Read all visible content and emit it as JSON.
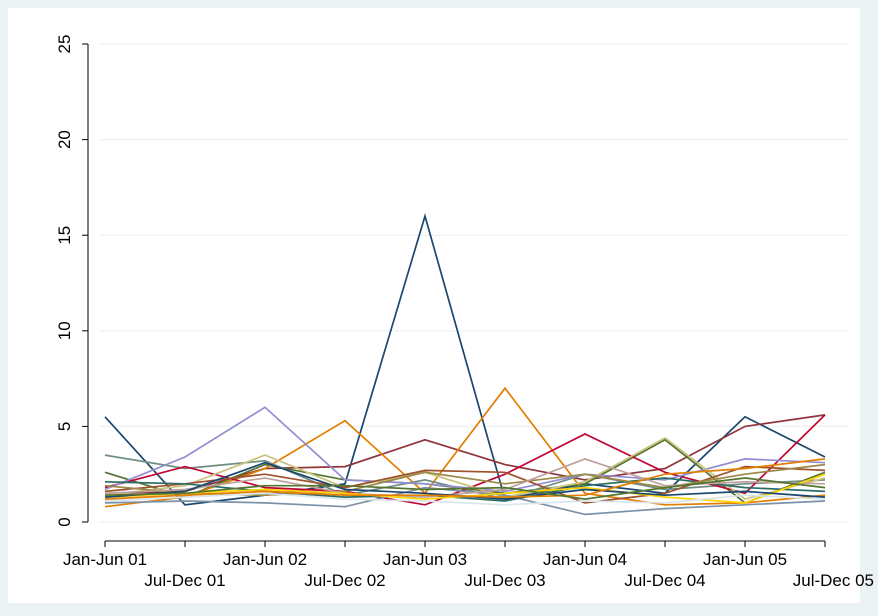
{
  "chart_data": {
    "type": "line",
    "title": "",
    "xlabel": "",
    "ylabel": "",
    "categories": [
      "Jan-Jun 01",
      "Jul-Dec 01",
      "Jan-Jun 02",
      "Jul-Dec 02",
      "Jan-Jun 03",
      "Jul-Dec 03",
      "Jan-Jun 04",
      "Jul-Dec 04",
      "Jan-Jun 05",
      "Jul-Dec 05"
    ],
    "yticks": [
      "0",
      "5",
      "10",
      "15",
      "20",
      "25"
    ],
    "ylim": [
      0,
      25
    ],
    "grid": true,
    "legend": "none",
    "series": [
      {
        "color": "#1a476f",
        "values": [
          5.5,
          0.9,
          1.4,
          2.0,
          16.0,
          1.2,
          2.0,
          1.5,
          5.5,
          3.4
        ]
      },
      {
        "color": "#90353b",
        "values": [
          1.5,
          1.6,
          2.8,
          2.9,
          4.3,
          3.0,
          2.2,
          2.8,
          5.0,
          5.6
        ]
      },
      {
        "color": "#55752f",
        "values": [
          2.6,
          1.3,
          3.0,
          2.2,
          2.0,
          1.5,
          2.0,
          4.3,
          1.0,
          2.6
        ]
      },
      {
        "color": "#e37e00",
        "values": [
          0.8,
          1.3,
          2.8,
          5.3,
          1.5,
          7.0,
          1.5,
          0.9,
          1.0,
          1.4
        ]
      },
      {
        "color": "#6e8e84",
        "values": [
          3.5,
          2.8,
          3.2,
          1.4,
          2.2,
          1.2,
          2.5,
          1.7,
          2.0,
          2.2
        ]
      },
      {
        "color": "#c10534",
        "values": [
          1.8,
          2.9,
          1.8,
          1.6,
          0.9,
          2.5,
          4.6,
          2.6,
          1.5,
          5.6
        ]
      },
      {
        "color": "#938dd2",
        "values": [
          1.7,
          3.4,
          6.0,
          2.2,
          2.0,
          1.6,
          2.5,
          2.2,
          3.3,
          3.1
        ]
      },
      {
        "color": "#cac27e",
        "values": [
          1.4,
          1.9,
          3.5,
          1.8,
          2.6,
          1.3,
          2.1,
          4.4,
          1.2,
          2.3
        ]
      },
      {
        "color": "#a0522d",
        "values": [
          1.6,
          2.0,
          2.5,
          1.8,
          2.7,
          2.6,
          1.0,
          1.5,
          2.9,
          2.7
        ]
      },
      {
        "color": "#7b92a8",
        "values": [
          1.0,
          1.1,
          1.0,
          0.8,
          1.8,
          1.4,
          0.4,
          0.7,
          0.9,
          1.1
        ]
      },
      {
        "color": "#2d6d66",
        "values": [
          2.1,
          2.0,
          1.6,
          1.3,
          1.4,
          1.1,
          1.9,
          2.3,
          1.8,
          1.6
        ]
      },
      {
        "color": "#9c8847",
        "values": [
          1.9,
          1.5,
          1.4,
          1.6,
          2.6,
          2.0,
          2.5,
          1.8,
          2.5,
          3.0
        ]
      },
      {
        "color": "#bfa19c",
        "values": [
          1.5,
          1.7,
          2.3,
          1.5,
          1.3,
          1.7,
          3.3,
          1.9,
          2.1,
          2.0
        ]
      },
      {
        "color": "#ffd200",
        "values": [
          1.3,
          1.5,
          1.7,
          1.5,
          1.2,
          1.5,
          1.8,
          1.3,
          1.0,
          2.5
        ]
      },
      {
        "color": "#d9e6eb",
        "values": [
          1.1,
          1.3,
          1.5,
          1.2,
          1.1,
          0.9,
          1.1,
          1.0,
          1.4,
          1.2
        ]
      },
      {
        "color": "#1a476f",
        "values": [
          1.3,
          1.6,
          3.1,
          1.7,
          1.5,
          1.2,
          1.7,
          1.4,
          1.6,
          1.3
        ]
      },
      {
        "color": "#e37e00",
        "values": [
          1.2,
          1.4,
          1.6,
          1.4,
          1.4,
          1.3,
          1.4,
          2.5,
          2.8,
          3.3
        ]
      },
      {
        "color": "#55752f",
        "values": [
          1.4,
          1.5,
          1.9,
          1.9,
          1.7,
          1.8,
          1.2,
          1.8,
          2.3,
          1.8
        ]
      }
    ]
  }
}
